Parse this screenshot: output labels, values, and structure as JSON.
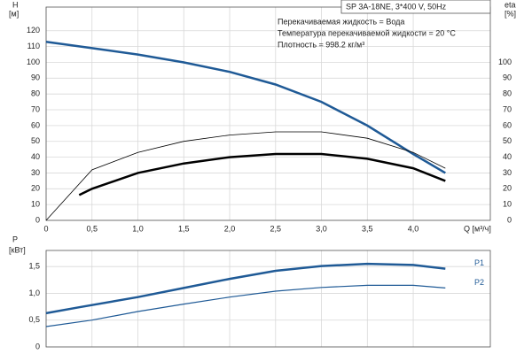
{
  "chart_data": [
    {
      "type": "line",
      "title": "SP 3A-18NE, 3*400 V, 50Hz",
      "annotations": [
        "Перекачиваемая жидкость = Вода",
        "Температура перекачиваемой жидкости = 20 °C",
        "Плотность = 998.2 кг/м³"
      ],
      "xlabel": "Q [м³/ч]",
      "ylabel": "H",
      "yunit": "[м]",
      "y2label": "eta",
      "y2unit": "[%]",
      "xlim": [
        0,
        4.84
      ],
      "xticks": [
        0,
        {
          "value": 0.5,
          "label": "0,5"
        },
        {
          "value": 1,
          "label": "1,0"
        },
        {
          "value": 1.5,
          "label": "1,5"
        },
        {
          "value": 2,
          "label": "2,0"
        },
        {
          "value": 2.5,
          "label": "2,5"
        },
        {
          "value": 3,
          "label": "3,0"
        },
        {
          "value": 3.5,
          "label": "3,5"
        },
        {
          "value": 4,
          "label": "4,0"
        }
      ],
      "ylim": [
        0,
        135
      ],
      "yticks": [
        0,
        10,
        20,
        30,
        40,
        50,
        60,
        70,
        80,
        90,
        100,
        110,
        120
      ],
      "y2lim": [
        0,
        135
      ],
      "y2ticks": [
        0,
        10,
        20,
        30,
        40,
        50,
        60,
        70,
        80,
        90,
        100
      ],
      "grid": true,
      "series": [
        {
          "color": "#1f5a96",
          "linewidth": 2.5,
          "x": [
            0,
            0.5,
            1,
            1.5,
            2,
            2.5,
            3,
            3.5,
            4,
            4.35
          ],
          "values": [
            113,
            109,
            105,
            100,
            94,
            86,
            75,
            60,
            42,
            30
          ]
        },
        {
          "color": "#000000",
          "linewidth": 0.8,
          "axis": "y2",
          "x": [
            0,
            0.5,
            1,
            1.5,
            2,
            2.5,
            3,
            3.5,
            4,
            4.35
          ],
          "values": [
            0,
            32,
            43,
            50,
            54,
            56,
            56,
            52,
            43,
            33
          ]
        },
        {
          "color": "#000000",
          "linewidth": 2.5,
          "axis": "y2",
          "x": [
            0.36,
            0.5,
            1,
            1.5,
            2,
            2.5,
            3,
            3.5,
            4,
            4.35
          ],
          "values": [
            16,
            20,
            30,
            36,
            40,
            42,
            42,
            39,
            33,
            25
          ]
        }
      ]
    },
    {
      "type": "line",
      "ylabel": "P",
      "yunit": "[кВт]",
      "xlim": [
        0,
        4.84
      ],
      "xticks": [
        0,
        0.5,
        1,
        1.5,
        2,
        2.5,
        3,
        3.5,
        4
      ],
      "ylim": [
        0,
        1.8
      ],
      "yticks": [
        0,
        {
          "value": 0.5,
          "label": "0,5"
        },
        {
          "value": 1,
          "label": "1,0"
        },
        {
          "value": 1.5,
          "label": "1,5"
        }
      ],
      "grid": true,
      "series": [
        {
          "name": "P1",
          "color": "#1f5a96",
          "linewidth": 2.5,
          "x": [
            0,
            0.36,
            1,
            1.5,
            2,
            2.5,
            3,
            3.5,
            4,
            4.35
          ],
          "values": [
            0.63,
            0.74,
            0.93,
            1.1,
            1.27,
            1.42,
            1.51,
            1.55,
            1.53,
            1.46
          ]
        },
        {
          "name": "P2",
          "color": "#1f5a96",
          "linewidth": 1.2,
          "x": [
            0,
            0.5,
            1,
            1.5,
            2,
            2.5,
            3,
            3.5,
            4,
            4.35
          ],
          "values": [
            0.38,
            0.5,
            0.66,
            0.8,
            0.93,
            1.04,
            1.11,
            1.15,
            1.15,
            1.1
          ]
        }
      ]
    }
  ]
}
